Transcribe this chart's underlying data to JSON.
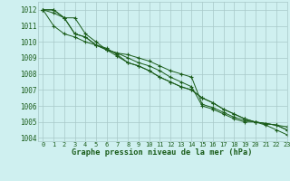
{
  "title": "Graphe pression niveau de la mer (hPa)",
  "background_color": "#cff0f0",
  "grid_color": "#a8c8c8",
  "line_color": "#1a5c1a",
  "xlim": [
    -0.5,
    23
  ],
  "ylim": [
    1003.8,
    1012.5
  ],
  "yticks": [
    1004,
    1005,
    1006,
    1007,
    1008,
    1009,
    1010,
    1011,
    1012
  ],
  "xticks": [
    0,
    1,
    2,
    3,
    4,
    5,
    6,
    7,
    8,
    9,
    10,
    11,
    12,
    13,
    14,
    15,
    16,
    17,
    18,
    19,
    20,
    21,
    22,
    23
  ],
  "s1": [
    1012.0,
    1012.0,
    1011.5,
    1011.5,
    1010.5,
    1010.0,
    1009.5,
    1009.3,
    1009.0,
    1008.7,
    1008.5,
    1008.2,
    1007.8,
    1007.5,
    1007.2,
    1006.0,
    1005.8,
    1005.5,
    1005.2,
    1005.0,
    1005.0,
    1004.8,
    1004.5,
    1004.2
  ],
  "s2": [
    1012.0,
    1011.0,
    1010.5,
    1010.3,
    1010.0,
    1009.8,
    1009.5,
    1009.3,
    1009.2,
    1009.0,
    1008.8,
    1008.5,
    1008.2,
    1008.0,
    1007.8,
    1006.1,
    1005.9,
    1005.6,
    1005.3,
    1005.1,
    1005.0,
    1004.9,
    1004.8,
    1004.7
  ],
  "s3": [
    1012.0,
    1011.8,
    1011.5,
    1010.5,
    1010.3,
    1009.8,
    1009.5,
    1009.1,
    1008.7,
    1008.5,
    1008.2,
    1007.8,
    1007.5,
    1007.2,
    1007.0,
    1006.5,
    1006.2,
    1005.8,
    1005.5,
    1005.2,
    1005.0,
    1004.9,
    1004.8,
    1004.5
  ],
  "s4": [
    1012.0,
    1012.0,
    1011.5,
    1010.5,
    1010.3,
    1009.8,
    1009.6,
    1009.2,
    1008.7,
    1008.5,
    1008.2,
    1007.8,
    1007.5,
    1007.2,
    1007.0,
    1006.5,
    1006.2,
    1005.8,
    1005.5,
    1005.2,
    1005.0,
    1004.9,
    1004.8,
    1004.5
  ],
  "ylabel_fontsize": 5.5,
  "xlabel_fontsize": 5.0,
  "title_fontsize": 6.2,
  "linewidth": 0.7,
  "markersize": 3.5
}
